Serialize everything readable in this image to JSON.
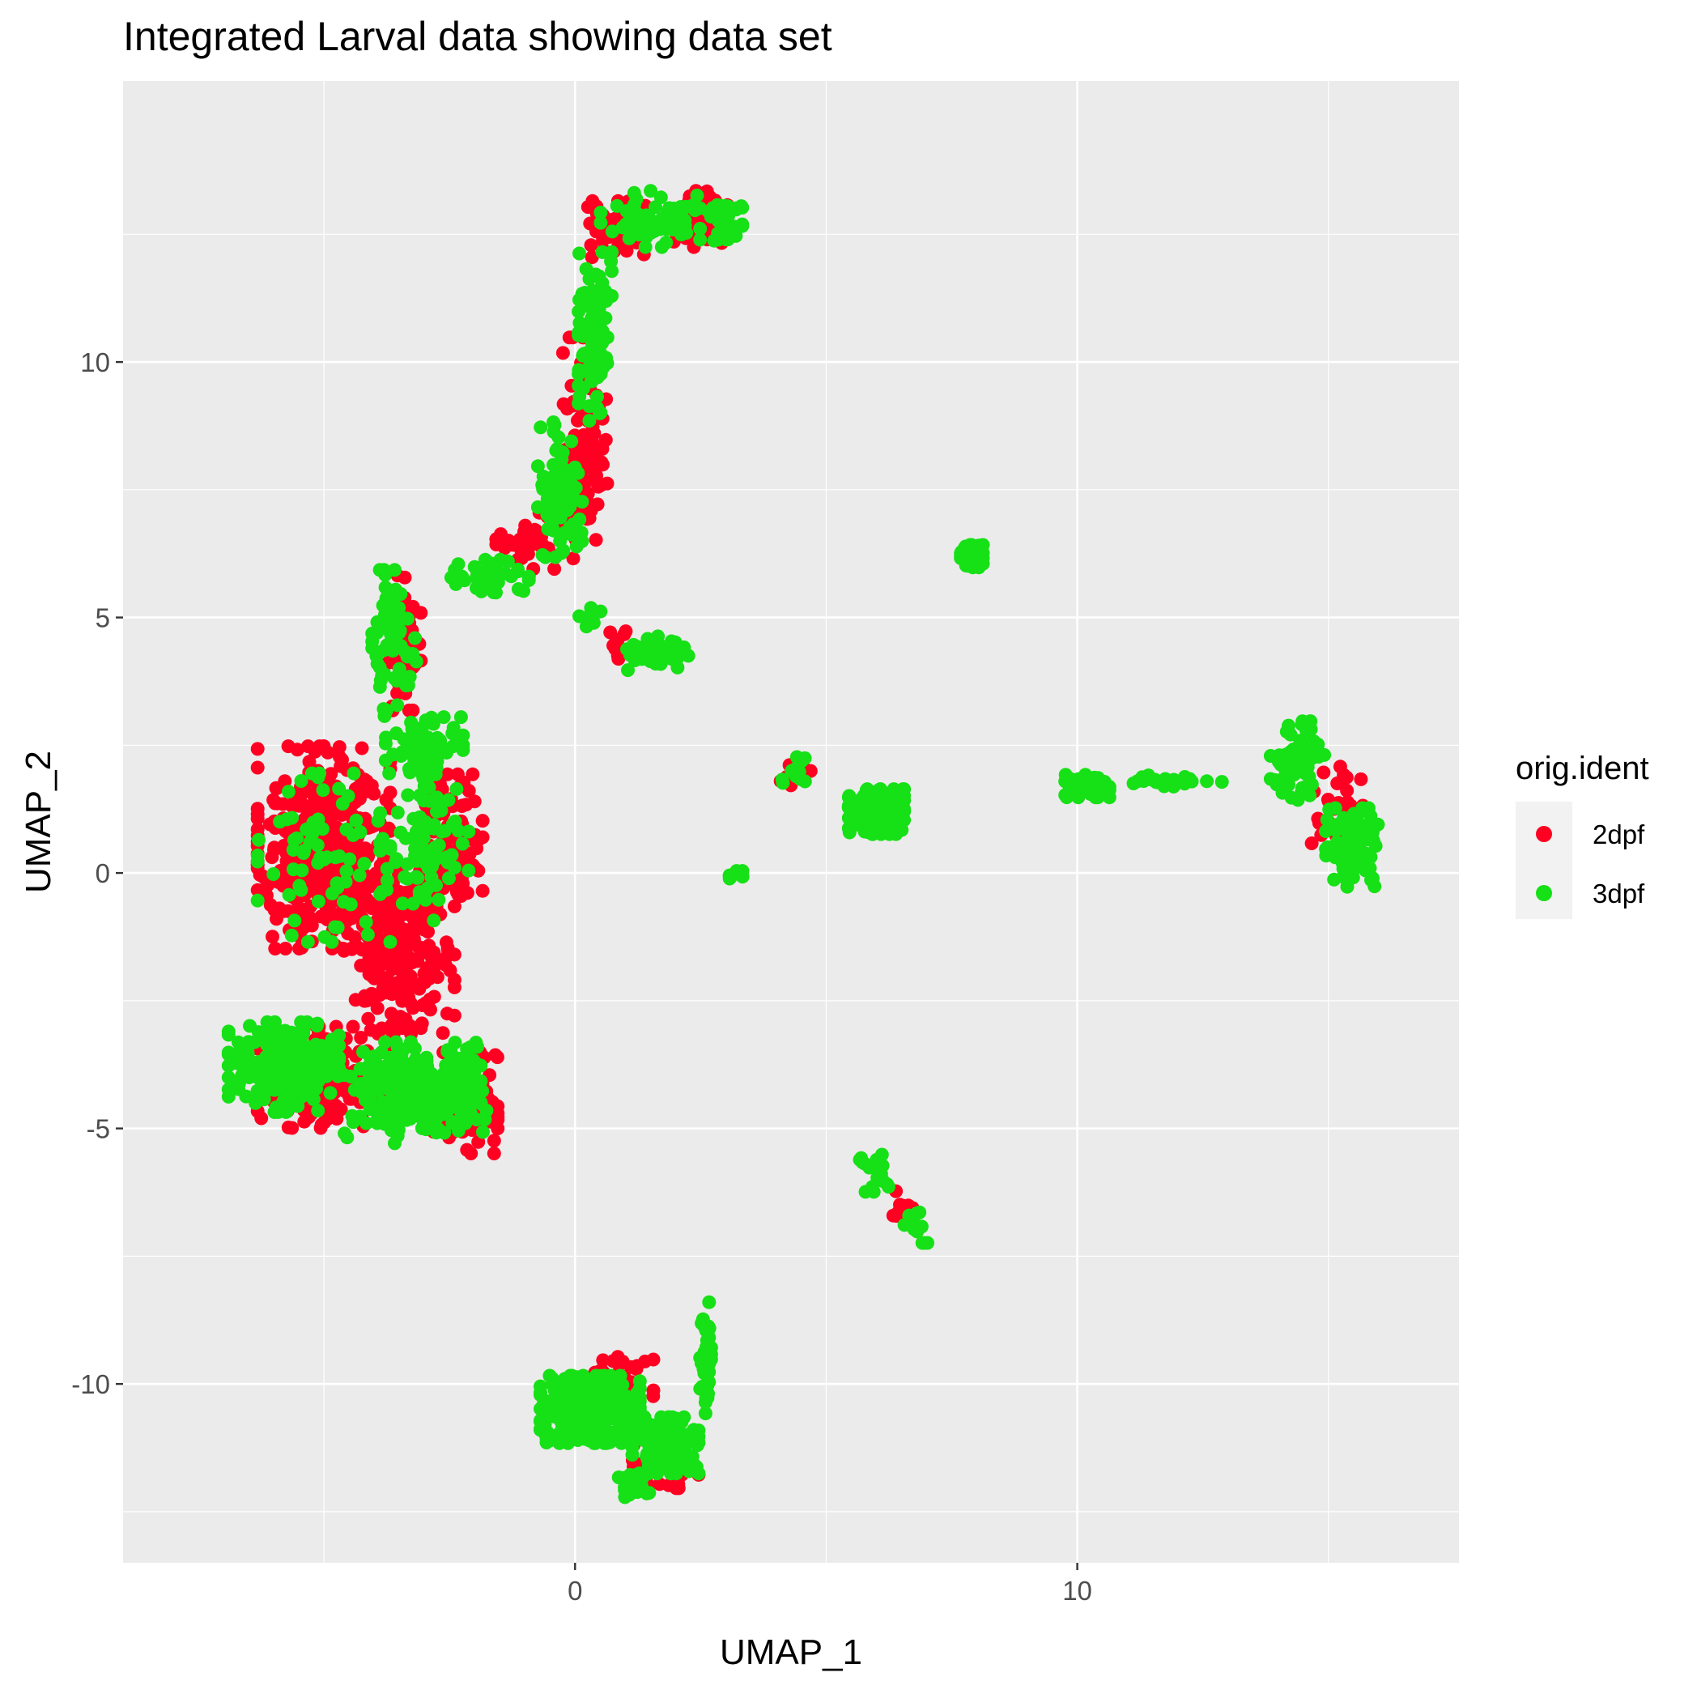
{
  "chart_data": {
    "type": "scatter",
    "title": "Integrated Larval data showing data set",
    "xlabel": "UMAP_1",
    "ylabel": "UMAP_2",
    "xlim": [
      -9.0,
      17.6
    ],
    "ylim": [
      -13.5,
      15.5
    ],
    "xticks": [
      0,
      10
    ],
    "xtick_labels": [
      "0",
      "10"
    ],
    "yticks": [
      -10,
      -5,
      0,
      5,
      10
    ],
    "ytick_labels": [
      "-10",
      "-5",
      "0",
      "5",
      "10"
    ],
    "grid": true,
    "legend": {
      "title": "orig.ident",
      "placement": "right",
      "entries": [
        "2dpf",
        "3dpf"
      ]
    },
    "series": [
      {
        "name": "2dpf",
        "color": "#ff0022",
        "regions": [
          {
            "center": [
              -5.0,
              0.5
            ],
            "spread": [
              1.2,
              1.8
            ],
            "count": 420
          },
          {
            "center": [
              -3.5,
              -1.5
            ],
            "spread": [
              1.0,
              1.5
            ],
            "count": 220
          },
          {
            "center": [
              -2.5,
              0.5
            ],
            "spread": [
              0.6,
              1.3
            ],
            "count": 120
          },
          {
            "center": [
              -5.0,
              -4.0
            ],
            "spread": [
              1.2,
              0.9
            ],
            "count": 160
          },
          {
            "center": [
              -2.2,
              -4.5
            ],
            "spread": [
              0.6,
              0.9
            ],
            "count": 100
          },
          {
            "center": [
              -3.4,
              4.5
            ],
            "spread": [
              0.3,
              1.2
            ],
            "count": 60
          },
          {
            "center": [
              -0.8,
              6.5
            ],
            "spread": [
              0.7,
              0.5
            ],
            "count": 40
          },
          {
            "center": [
              0.2,
              8.5
            ],
            "spread": [
              0.4,
              1.8
            ],
            "count": 110
          },
          {
            "center": [
              0.9,
              12.6
            ],
            "spread": [
              0.6,
              0.5
            ],
            "count": 70
          },
          {
            "center": [
              2.5,
              12.8
            ],
            "spread": [
              0.5,
              0.5
            ],
            "count": 50
          },
          {
            "center": [
              0.9,
              4.4
            ],
            "spread": [
              0.3,
              0.3
            ],
            "count": 14
          },
          {
            "center": [
              4.3,
              1.9
            ],
            "spread": [
              0.4,
              0.3
            ],
            "count": 10
          },
          {
            "center": [
              15.2,
              1.2
            ],
            "spread": [
              0.5,
              0.8
            ],
            "count": 40
          },
          {
            "center": [
              6.5,
              -6.5
            ],
            "spread": [
              0.3,
              0.3
            ],
            "count": 10
          },
          {
            "center": [
              0.9,
              -10.0
            ],
            "spread": [
              0.6,
              0.6
            ],
            "count": 50
          },
          {
            "center": [
              1.8,
              -11.6
            ],
            "spread": [
              0.6,
              0.4
            ],
            "count": 40
          }
        ]
      },
      {
        "name": "3dpf",
        "color": "#16e016",
        "regions": [
          {
            "center": [
              -5.8,
              -3.8
            ],
            "spread": [
              1.0,
              0.8
            ],
            "count": 260
          },
          {
            "center": [
              -3.5,
              -4.3
            ],
            "spread": [
              1.0,
              0.9
            ],
            "count": 200
          },
          {
            "center": [
              -2.3,
              -4.2
            ],
            "spread": [
              0.6,
              0.8
            ],
            "count": 110
          },
          {
            "center": [
              -5.0,
              0.3
            ],
            "spread": [
              1.2,
              1.5
            ],
            "count": 70
          },
          {
            "center": [
              -3.0,
              0.5
            ],
            "spread": [
              0.8,
              1.3
            ],
            "count": 90
          },
          {
            "center": [
              -3.6,
              4.5
            ],
            "spread": [
              0.4,
              1.3
            ],
            "count": 80
          },
          {
            "center": [
              -3.0,
              2.5
            ],
            "spread": [
              0.7,
              0.5
            ],
            "count": 60
          },
          {
            "center": [
              -1.8,
              5.8
            ],
            "spread": [
              0.8,
              0.3
            ],
            "count": 40
          },
          {
            "center": [
              -0.3,
              7.5
            ],
            "spread": [
              0.4,
              1.2
            ],
            "count": 90
          },
          {
            "center": [
              0.4,
              10.5
            ],
            "spread": [
              0.3,
              1.5
            ],
            "count": 100
          },
          {
            "center": [
              1.5,
              12.8
            ],
            "spread": [
              0.9,
              0.5
            ],
            "count": 70
          },
          {
            "center": [
              3.0,
              12.8
            ],
            "spread": [
              0.3,
              0.4
            ],
            "count": 40
          },
          {
            "center": [
              1.6,
              4.3
            ],
            "spread": [
              0.6,
              0.3
            ],
            "count": 50
          },
          {
            "center": [
              0.3,
              5.0
            ],
            "spread": [
              0.3,
              0.2
            ],
            "count": 8
          },
          {
            "center": [
              7.9,
              6.2
            ],
            "spread": [
              0.2,
              0.2
            ],
            "count": 120
          },
          {
            "center": [
              6.0,
              1.2
            ],
            "spread": [
              0.5,
              0.4
            ],
            "count": 240
          },
          {
            "center": [
              4.3,
              2.0
            ],
            "spread": [
              0.3,
              0.3
            ],
            "count": 14
          },
          {
            "center": [
              3.2,
              0.0
            ],
            "spread": [
              0.2,
              0.1
            ],
            "count": 8
          },
          {
            "center": [
              10.2,
              1.7
            ],
            "spread": [
              0.4,
              0.2
            ],
            "count": 60
          },
          {
            "center": [
              12.0,
              1.8
            ],
            "spread": [
              0.8,
              0.1
            ],
            "count": 30
          },
          {
            "center": [
              14.4,
              2.2
            ],
            "spread": [
              0.5,
              0.7
            ],
            "count": 60
          },
          {
            "center": [
              15.5,
              0.5
            ],
            "spread": [
              0.5,
              0.7
            ],
            "count": 120
          },
          {
            "center": [
              6.0,
              -5.8
            ],
            "spread": [
              0.3,
              0.4
            ],
            "count": 20
          },
          {
            "center": [
              6.8,
              -6.8
            ],
            "spread": [
              0.3,
              0.4
            ],
            "count": 12
          },
          {
            "center": [
              0.3,
              -10.5
            ],
            "spread": [
              0.9,
              0.6
            ],
            "count": 380
          },
          {
            "center": [
              1.8,
              -11.2
            ],
            "spread": [
              0.6,
              0.5
            ],
            "count": 180
          },
          {
            "center": [
              1.2,
              -12.0
            ],
            "spread": [
              0.3,
              0.2
            ],
            "count": 40
          },
          {
            "center": [
              2.6,
              -9.5
            ],
            "spread": [
              0.1,
              1.0
            ],
            "count": 50
          }
        ]
      }
    ]
  }
}
